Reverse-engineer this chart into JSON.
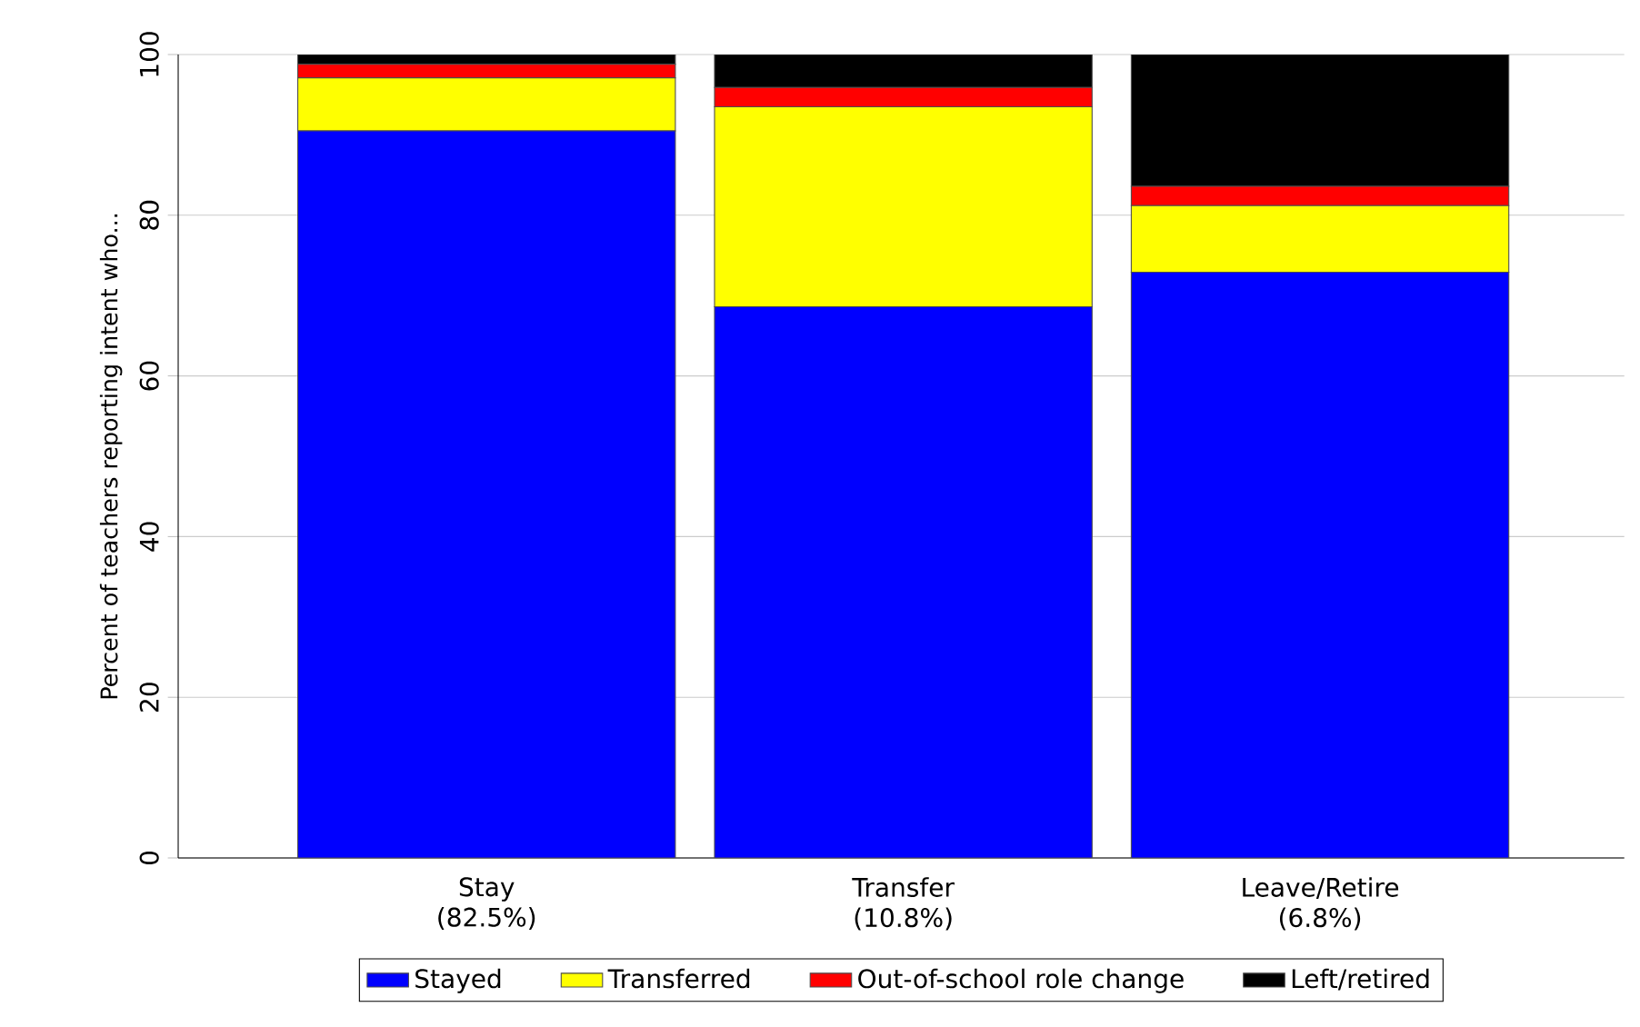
{
  "chart_data": {
    "type": "bar",
    "stacked": true,
    "ylabel": "Percent of teachers reporting intent who...",
    "categories": [
      "Stay\n(82.5%)",
      "Transfer\n(10.8%)",
      "Leave/Retire\n(6.8%)"
    ],
    "series": [
      {
        "name": "Stayed",
        "color": "#0000ff",
        "values": [
          90.5,
          68.6,
          72.9
        ]
      },
      {
        "name": "Transferred",
        "color": "#ffff00",
        "values": [
          6.6,
          24.9,
          8.3
        ]
      },
      {
        "name": "Out-of-school role change",
        "color": "#ff0000",
        "values": [
          1.7,
          2.4,
          2.4
        ]
      },
      {
        "name": "Left/retired",
        "color": "#000000",
        "values": [
          1.2,
          4.1,
          16.4
        ]
      }
    ],
    "ylim": [
      0,
      100
    ],
    "yticks": [
      0,
      20,
      40,
      60,
      80,
      100
    ],
    "grid": "y",
    "legend": "bottom"
  }
}
